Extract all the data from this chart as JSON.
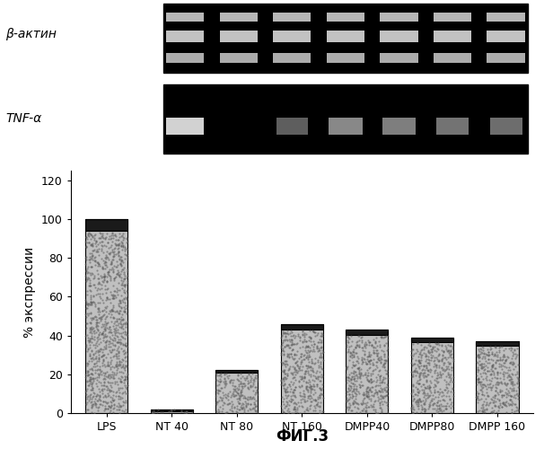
{
  "categories": [
    "LPS",
    "NT 40",
    "NT 80",
    "NT 160",
    "DMPP40",
    "DMPP80",
    "DMPP 160"
  ],
  "values": [
    100,
    2,
    22,
    46,
    43,
    39,
    37
  ],
  "ylabel": "% экспрессии",
  "xlabel": "ФИГ.3",
  "yticks": [
    0,
    20,
    40,
    60,
    80,
    100,
    120
  ],
  "ylim": [
    0,
    125
  ],
  "background_color": "#ffffff",
  "gel_label_beta": "β-актин",
  "gel_label_tnf": "TNF-α",
  "tnf_band_intensities": [
    1.0,
    0.0,
    0.45,
    0.65,
    0.6,
    0.55,
    0.52
  ]
}
